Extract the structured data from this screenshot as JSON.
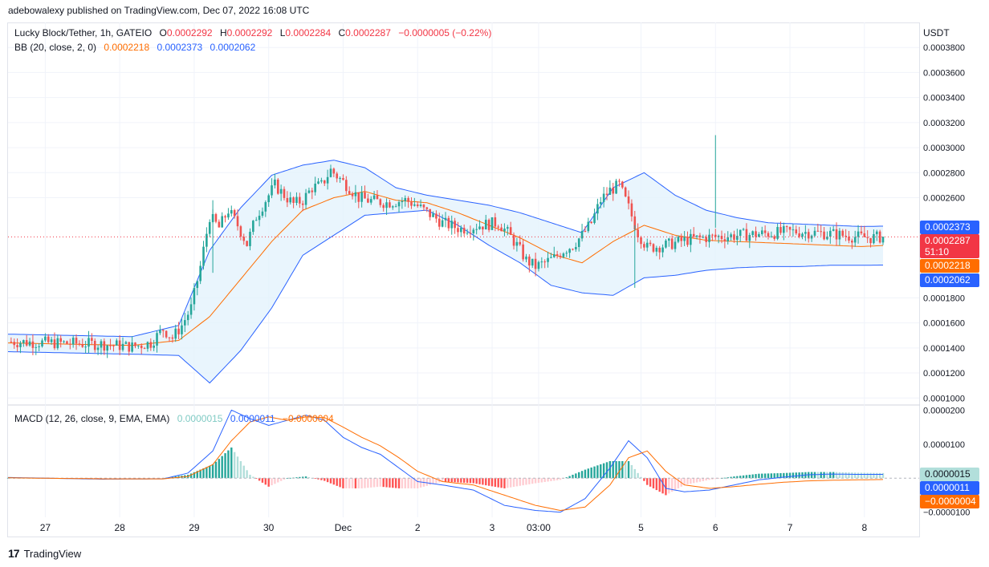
{
  "header": {
    "published": "adebowalexy published on TradingView.com, Dec 07, 2022 16:08 UTC"
  },
  "legend": {
    "symbol": "Lucky Block/Tether, 1h, GATEIO",
    "o_label": "O",
    "o": "0.0002292",
    "h_label": "H",
    "h": "0.0002292",
    "l_label": "L",
    "l": "0.0002284",
    "c_label": "C",
    "c": "0.0002287",
    "change": "−0.0000005 (−0.22%)",
    "bb_label": "BB (20, close, 2, 0)",
    "bb_basis": "0.0002218",
    "bb_upper": "0.0002373",
    "bb_lower": "0.0002062",
    "macd_label": "MACD (12, 26, close, 9, EMA, EMA)",
    "macd_hist": "0.0000015",
    "macd_line": "0.0000011",
    "macd_signal": "−0.0000004"
  },
  "price_axis": {
    "unit": "USDT",
    "ticks": [
      "0.0003800",
      "0.0003600",
      "0.0003400",
      "0.0003200",
      "0.0003000",
      "0.0002800",
      "0.0002600",
      "0.0001800",
      "0.0001600",
      "0.0001400",
      "0.0001200",
      "0.0001000"
    ],
    "tick_values": [
      0.00038,
      0.00036,
      0.00034,
      0.00032,
      0.0003,
      0.00028,
      0.00026,
      0.00018,
      0.00016,
      0.00014,
      0.00012,
      0.0001
    ]
  },
  "price_tags": {
    "upper": "0.0002373",
    "last": "0.0002287",
    "countdown": "51:10",
    "basis": "0.0002218",
    "lower": "0.0002062",
    "colors": {
      "upper": "#2962ff",
      "last": "#f23645",
      "basis": "#ff6d00",
      "lower": "#2962ff"
    }
  },
  "macd_axis": {
    "ticks": [
      "0.0000200",
      "0.0000100",
      "−0.0000100"
    ],
    "tick_values": [
      2e-05,
      1e-05,
      -1e-05
    ]
  },
  "macd_tags": {
    "hist": "0.0000015",
    "macd": "0.0000011",
    "signal": "−0.0000004",
    "colors": {
      "hist": "#b2dfdb",
      "macd": "#2962ff",
      "signal": "#ff6d00"
    }
  },
  "time_axis": {
    "labels": [
      "27",
      "28",
      "29",
      "30",
      "Dec",
      "2",
      "3",
      "03:00",
      "5",
      "6",
      "7",
      "8"
    ],
    "hours": [
      12,
      36,
      60,
      84,
      108,
      132,
      156,
      171,
      204,
      228,
      252,
      276
    ]
  },
  "footer": {
    "brand": "TradingView"
  },
  "chart_data": {
    "type": "candlestick",
    "title": "Lucky Block/Tether, 1h, GATEIO",
    "ylabel": "USDT",
    "ylim": [
      9.44e-05,
      0.0004
    ],
    "x_unit": "hours since first bar",
    "xlim": [
      0,
      282
    ],
    "close_keypoints": [
      [
        0,
        0.000145
      ],
      [
        30,
        0.000143
      ],
      [
        40,
        0.000141
      ],
      [
        46,
        0.000144
      ],
      [
        50,
        0.000155
      ],
      [
        53,
        0.000148
      ],
      [
        56,
        0.000158
      ],
      [
        59,
        0.000172
      ],
      [
        62,
        0.000205
      ],
      [
        65,
        0.000245
      ],
      [
        68,
        0.000236
      ],
      [
        71,
        0.00025
      ],
      [
        74,
        0.000238
      ],
      [
        77,
        0.000223
      ],
      [
        80,
        0.000245
      ],
      [
        83,
        0.000258
      ],
      [
        86,
        0.00027
      ],
      [
        89,
        0.000262
      ],
      [
        92,
        0.000255
      ],
      [
        95,
        0.000258
      ],
      [
        98,
        0.000268
      ],
      [
        101,
        0.00027
      ],
      [
        104,
        0.000282
      ],
      [
        107,
        0.000275
      ],
      [
        110,
        0.000268
      ],
      [
        113,
        0.00026
      ],
      [
        116,
        0.000258
      ],
      [
        122,
        0.000256
      ],
      [
        128,
        0.000258
      ],
      [
        131,
        0.000255
      ],
      [
        134,
        0.00025
      ],
      [
        140,
        0.00024
      ],
      [
        146,
        0.000235
      ],
      [
        152,
        0.000238
      ],
      [
        158,
        0.00024
      ],
      [
        161,
        0.000232
      ],
      [
        164,
        0.000222
      ],
      [
        167,
        0.00021
      ],
      [
        170,
        0.000205
      ],
      [
        173,
        0.000208
      ],
      [
        176,
        0.000212
      ],
      [
        179,
        0.000218
      ],
      [
        182,
        0.000222
      ],
      [
        185,
        0.00023
      ],
      [
        188,
        0.00024
      ],
      [
        191,
        0.000258
      ],
      [
        194,
        0.000266
      ],
      [
        197,
        0.00027
      ],
      [
        200,
        0.000252
      ],
      [
        203,
        0.000232
      ],
      [
        206,
        0.00022
      ],
      [
        212,
        0.000222
      ],
      [
        218,
        0.000226
      ],
      [
        224,
        0.000228
      ],
      [
        230,
        0.000229
      ],
      [
        236,
        0.00023
      ],
      [
        242,
        0.000231
      ],
      [
        248,
        0.000232
      ],
      [
        254,
        0.000233
      ],
      [
        260,
        0.000232
      ],
      [
        266,
        0.000231
      ],
      [
        272,
        0.000229
      ],
      [
        278,
        0.000228
      ],
      [
        282,
        0.0002287
      ]
    ],
    "bb_basis_keypoints": [
      [
        0,
        0.000144
      ],
      [
        20,
        0.000143
      ],
      [
        40,
        0.000142
      ],
      [
        55,
        0.000146
      ],
      [
        65,
        0.000165
      ],
      [
        75,
        0.000195
      ],
      [
        85,
        0.000225
      ],
      [
        95,
        0.00025
      ],
      [
        105,
        0.00026
      ],
      [
        115,
        0.000265
      ],
      [
        125,
        0.000258
      ],
      [
        135,
        0.000256
      ],
      [
        145,
        0.000248
      ],
      [
        155,
        0.000238
      ],
      [
        165,
        0.000228
      ],
      [
        175,
        0.000215
      ],
      [
        185,
        0.000208
      ],
      [
        195,
        0.000225
      ],
      [
        205,
        0.000238
      ],
      [
        215,
        0.00023
      ],
      [
        225,
        0.000226
      ],
      [
        235,
        0.000225
      ],
      [
        245,
        0.000224
      ],
      [
        255,
        0.000223
      ],
      [
        265,
        0.000222
      ],
      [
        275,
        0.000221
      ],
      [
        282,
        0.0002218
      ]
    ],
    "bb_upper_keypoints": [
      [
        0,
        0.000151
      ],
      [
        20,
        0.00015
      ],
      [
        40,
        0.000149
      ],
      [
        55,
        0.000158
      ],
      [
        65,
        0.000218
      ],
      [
        75,
        0.000252
      ],
      [
        85,
        0.000278
      ],
      [
        95,
        0.000286
      ],
      [
        105,
        0.00029
      ],
      [
        115,
        0.000284
      ],
      [
        125,
        0.000268
      ],
      [
        135,
        0.000262
      ],
      [
        145,
        0.000258
      ],
      [
        155,
        0.000254
      ],
      [
        165,
        0.000248
      ],
      [
        175,
        0.00024
      ],
      [
        185,
        0.000232
      ],
      [
        195,
        0.000268
      ],
      [
        205,
        0.00028
      ],
      [
        215,
        0.000262
      ],
      [
        225,
        0.00025
      ],
      [
        235,
        0.000244
      ],
      [
        245,
        0.00024
      ],
      [
        255,
        0.000239
      ],
      [
        265,
        0.000238
      ],
      [
        275,
        0.000237
      ],
      [
        282,
        0.0002373
      ]
    ],
    "bb_lower_keypoints": [
      [
        0,
        0.000137
      ],
      [
        20,
        0.000136
      ],
      [
        40,
        0.000135
      ],
      [
        55,
        0.000134
      ],
      [
        65,
        0.000112
      ],
      [
        75,
        0.000138
      ],
      [
        85,
        0.000172
      ],
      [
        95,
        0.000214
      ],
      [
        105,
        0.00023
      ],
      [
        115,
        0.000246
      ],
      [
        125,
        0.000248
      ],
      [
        135,
        0.00025
      ],
      [
        145,
        0.000238
      ],
      [
        155,
        0.000222
      ],
      [
        165,
        0.000208
      ],
      [
        175,
        0.00019
      ],
      [
        185,
        0.000184
      ],
      [
        195,
        0.000182
      ],
      [
        205,
        0.000196
      ],
      [
        215,
        0.000198
      ],
      [
        225,
        0.000202
      ],
      [
        235,
        0.000204
      ],
      [
        245,
        0.000205
      ],
      [
        255,
        0.000205
      ],
      [
        265,
        0.000206
      ],
      [
        275,
        0.000206
      ],
      [
        282,
        0.0002062
      ]
    ],
    "macd_ylim": [
      -1.15e-05,
      2.15e-05
    ],
    "macd_line_keypoints": [
      [
        0,
        2e-07
      ],
      [
        30,
        -3e-07
      ],
      [
        50,
        -2e-07
      ],
      [
        58,
        1.5e-06
      ],
      [
        66,
        8e-06
      ],
      [
        72,
        2e-05
      ],
      [
        78,
        1.75e-05
      ],
      [
        84,
        1.55e-05
      ],
      [
        90,
        1.7e-05
      ],
      [
        96,
        1.85e-05
      ],
      [
        102,
        1.7e-05
      ],
      [
        108,
        1.2e-05
      ],
      [
        114,
        9e-06
      ],
      [
        120,
        7e-06
      ],
      [
        126,
        3e-06
      ],
      [
        132,
        -1e-06
      ],
      [
        140,
        -2e-06
      ],
      [
        150,
        -3.5e-06
      ],
      [
        160,
        -8e-06
      ],
      [
        170,
        -9.5e-06
      ],
      [
        178,
        -1e-05
      ],
      [
        186,
        -6e-06
      ],
      [
        194,
        3e-06
      ],
      [
        200,
        1.1e-05
      ],
      [
        206,
        6e-06
      ],
      [
        212,
        -3e-06
      ],
      [
        218,
        -4e-06
      ],
      [
        226,
        -3.5e-06
      ],
      [
        234,
        -2e-06
      ],
      [
        242,
        -5e-07
      ],
      [
        250,
        3e-07
      ],
      [
        258,
        1e-06
      ],
      [
        266,
        1.2e-06
      ],
      [
        274,
        1.1e-06
      ],
      [
        282,
        1.1e-06
      ]
    ],
    "macd_signal_keypoints": [
      [
        0,
        1e-07
      ],
      [
        30,
        -2e-07
      ],
      [
        50,
        -2e-07
      ],
      [
        58,
        5e-07
      ],
      [
        66,
        4e-06
      ],
      [
        72,
        1.1e-05
      ],
      [
        78,
        1.65e-05
      ],
      [
        84,
        1.8e-05
      ],
      [
        90,
        1.7e-05
      ],
      [
        96,
        1.8e-05
      ],
      [
        102,
        1.78e-05
      ],
      [
        108,
        1.5e-05
      ],
      [
        114,
        1.2e-05
      ],
      [
        120,
        9.5e-06
      ],
      [
        126,
        6e-06
      ],
      [
        132,
        2e-06
      ],
      [
        140,
        -1e-06
      ],
      [
        150,
        -2e-06
      ],
      [
        160,
        -5e-06
      ],
      [
        170,
        -8e-06
      ],
      [
        178,
        -9.5e-06
      ],
      [
        186,
        -8.5e-06
      ],
      [
        194,
        -2e-06
      ],
      [
        200,
        6e-06
      ],
      [
        206,
        8e-06
      ],
      [
        212,
        2e-06
      ],
      [
        218,
        -2e-06
      ],
      [
        226,
        -3e-06
      ],
      [
        234,
        -2.5e-06
      ],
      [
        242,
        -1.8e-06
      ],
      [
        250,
        -1.2e-06
      ],
      [
        258,
        -8e-07
      ],
      [
        266,
        -6e-07
      ],
      [
        274,
        -5e-07
      ],
      [
        282,
        -4e-07
      ]
    ]
  },
  "colors": {
    "up": "#26a69a",
    "down": "#ef5350",
    "bb_band": "#2962ff",
    "bb_basis": "#ff6d00",
    "bb_fill": "#e3f2fd",
    "hist_up_strong": "#26a69a",
    "hist_up_weak": "#b2dfdb",
    "hist_down_strong": "#ff5252",
    "hist_down_weak": "#ffcdd2"
  }
}
